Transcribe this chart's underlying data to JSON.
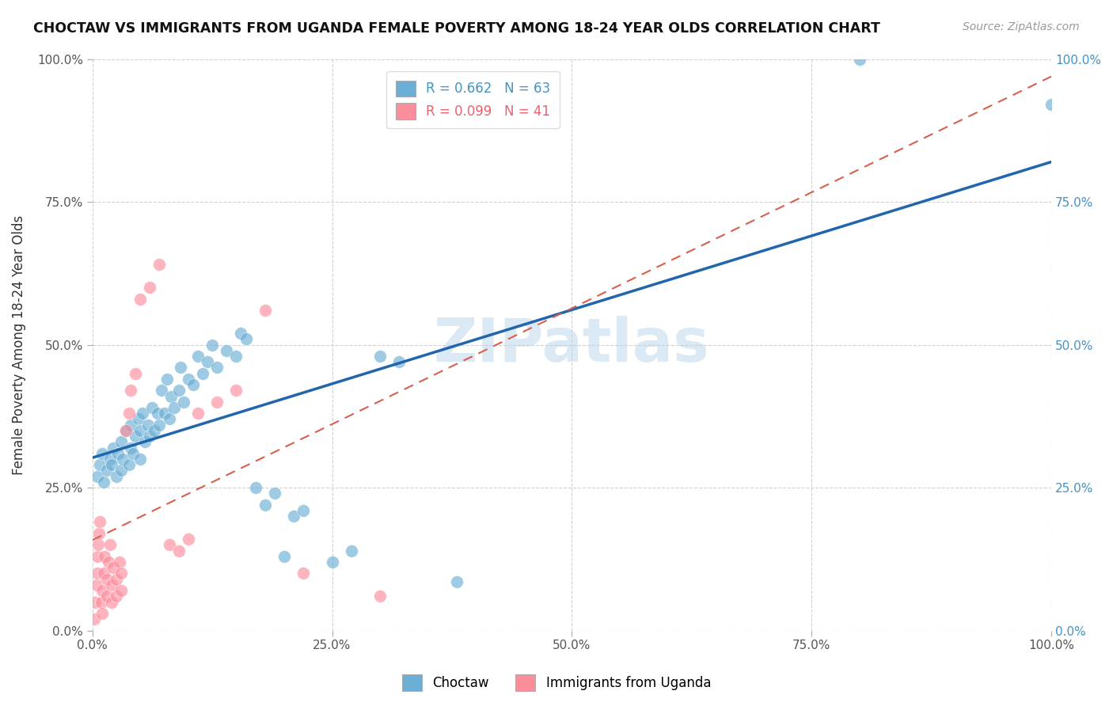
{
  "title": "CHOCTAW VS IMMIGRANTS FROM UGANDA FEMALE POVERTY AMONG 18-24 YEAR OLDS CORRELATION CHART",
  "source": "Source: ZipAtlas.com",
  "ylabel": "Female Poverty Among 18-24 Year Olds",
  "choctaw_R": 0.662,
  "choctaw_N": 63,
  "uganda_R": 0.099,
  "uganda_N": 41,
  "choctaw_color": "#6baed6",
  "uganda_color": "#fc8d9b",
  "choctaw_line_color": "#2166ac",
  "uganda_line_color": "#d6604d",
  "choctaw_points_x": [
    0.005,
    0.008,
    0.01,
    0.012,
    0.015,
    0.018,
    0.02,
    0.022,
    0.025,
    0.027,
    0.03,
    0.03,
    0.032,
    0.035,
    0.038,
    0.04,
    0.04,
    0.042,
    0.045,
    0.048,
    0.05,
    0.05,
    0.052,
    0.055,
    0.058,
    0.06,
    0.062,
    0.065,
    0.068,
    0.07,
    0.072,
    0.075,
    0.078,
    0.08,
    0.082,
    0.085,
    0.09,
    0.092,
    0.095,
    0.1,
    0.105,
    0.11,
    0.115,
    0.12,
    0.125,
    0.13,
    0.14,
    0.15,
    0.155,
    0.16,
    0.17,
    0.18,
    0.19,
    0.2,
    0.21,
    0.22,
    0.25,
    0.27,
    0.3,
    0.32,
    0.38,
    0.8,
    1.0
  ],
  "choctaw_points_y": [
    0.27,
    0.29,
    0.31,
    0.26,
    0.28,
    0.3,
    0.29,
    0.32,
    0.27,
    0.31,
    0.28,
    0.33,
    0.3,
    0.35,
    0.29,
    0.32,
    0.36,
    0.31,
    0.34,
    0.37,
    0.3,
    0.35,
    0.38,
    0.33,
    0.36,
    0.34,
    0.39,
    0.35,
    0.38,
    0.36,
    0.42,
    0.38,
    0.44,
    0.37,
    0.41,
    0.39,
    0.42,
    0.46,
    0.4,
    0.44,
    0.43,
    0.48,
    0.45,
    0.47,
    0.5,
    0.46,
    0.49,
    0.48,
    0.52,
    0.51,
    0.25,
    0.22,
    0.24,
    0.13,
    0.2,
    0.21,
    0.12,
    0.14,
    0.48,
    0.47,
    0.085,
    1.0,
    0.92
  ],
  "uganda_points_x": [
    0.002,
    0.003,
    0.004,
    0.005,
    0.005,
    0.006,
    0.007,
    0.008,
    0.009,
    0.01,
    0.01,
    0.012,
    0.013,
    0.015,
    0.015,
    0.017,
    0.018,
    0.02,
    0.02,
    0.022,
    0.025,
    0.025,
    0.028,
    0.03,
    0.03,
    0.035,
    0.038,
    0.04,
    0.045,
    0.05,
    0.06,
    0.07,
    0.08,
    0.09,
    0.1,
    0.11,
    0.13,
    0.15,
    0.18,
    0.22,
    0.3
  ],
  "uganda_points_y": [
    0.02,
    0.05,
    0.08,
    0.1,
    0.13,
    0.15,
    0.17,
    0.19,
    0.05,
    0.03,
    0.07,
    0.1,
    0.13,
    0.06,
    0.09,
    0.12,
    0.15,
    0.05,
    0.08,
    0.11,
    0.06,
    0.09,
    0.12,
    0.07,
    0.1,
    0.35,
    0.38,
    0.42,
    0.45,
    0.58,
    0.6,
    0.64,
    0.15,
    0.14,
    0.16,
    0.38,
    0.4,
    0.42,
    0.56,
    0.1,
    0.06
  ],
  "xlim": [
    0.0,
    1.0
  ],
  "ylim": [
    0.0,
    1.0
  ],
  "xticks": [
    0.0,
    0.25,
    0.5,
    0.75,
    1.0
  ],
  "yticks": [
    0.0,
    0.25,
    0.5,
    0.75,
    1.0
  ],
  "xticklabels": [
    "0.0%",
    "25.0%",
    "50.0%",
    "75.0%",
    "100.0%"
  ],
  "yticklabels": [
    "0.0%",
    "25.0%",
    "50.0%",
    "75.0%",
    "100.0%"
  ]
}
